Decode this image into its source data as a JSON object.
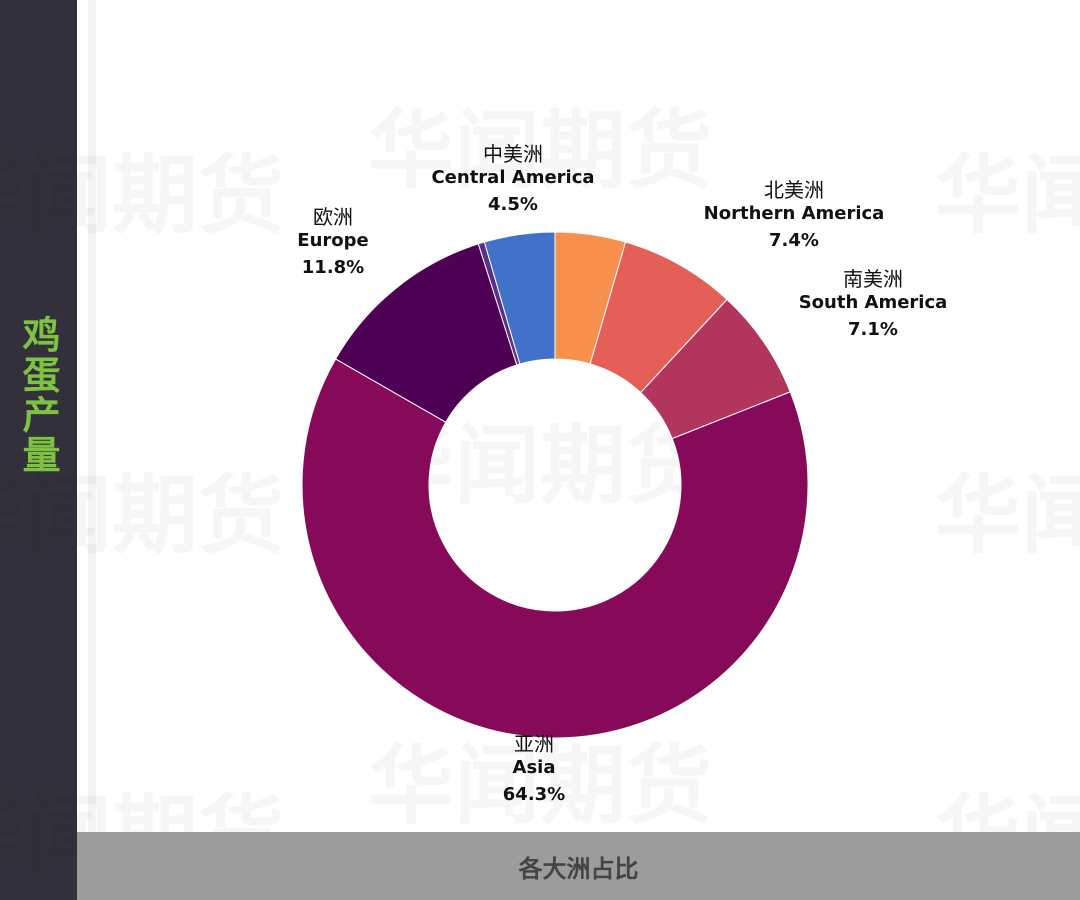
{
  "sidebar": {
    "title": "鸡蛋产量"
  },
  "watermark": {
    "text": "华闻期货"
  },
  "footer": {
    "caption": "各大洲占比"
  },
  "chart_data": {
    "type": "pie",
    "donut": true,
    "title": "",
    "slices": [
      {
        "cn": "中美洲",
        "en": "Central America",
        "value": 4.5,
        "label": "4.5%",
        "color": "#f7904c"
      },
      {
        "cn": "北美洲",
        "en": "Northern America",
        "value": 7.4,
        "label": "7.4%",
        "color": "#e35f57"
      },
      {
        "cn": "南美洲",
        "en": "South America",
        "value": 7.1,
        "label": "7.1%",
        "color": "#b2355c"
      },
      {
        "cn": "亚洲",
        "en": "Asia",
        "value": 64.3,
        "label": "64.3%",
        "color": "#870a5a"
      },
      {
        "cn": "欧洲",
        "en": "Europe",
        "value": 11.8,
        "label": "11.8%",
        "color": "#4d0054"
      },
      {
        "cn": "",
        "en": "",
        "value": 0.4,
        "label": "",
        "color": "#5a2f8a"
      },
      {
        "cn": "",
        "en": "",
        "value": 4.5,
        "label": "",
        "color": "#4171c9"
      }
    ]
  }
}
